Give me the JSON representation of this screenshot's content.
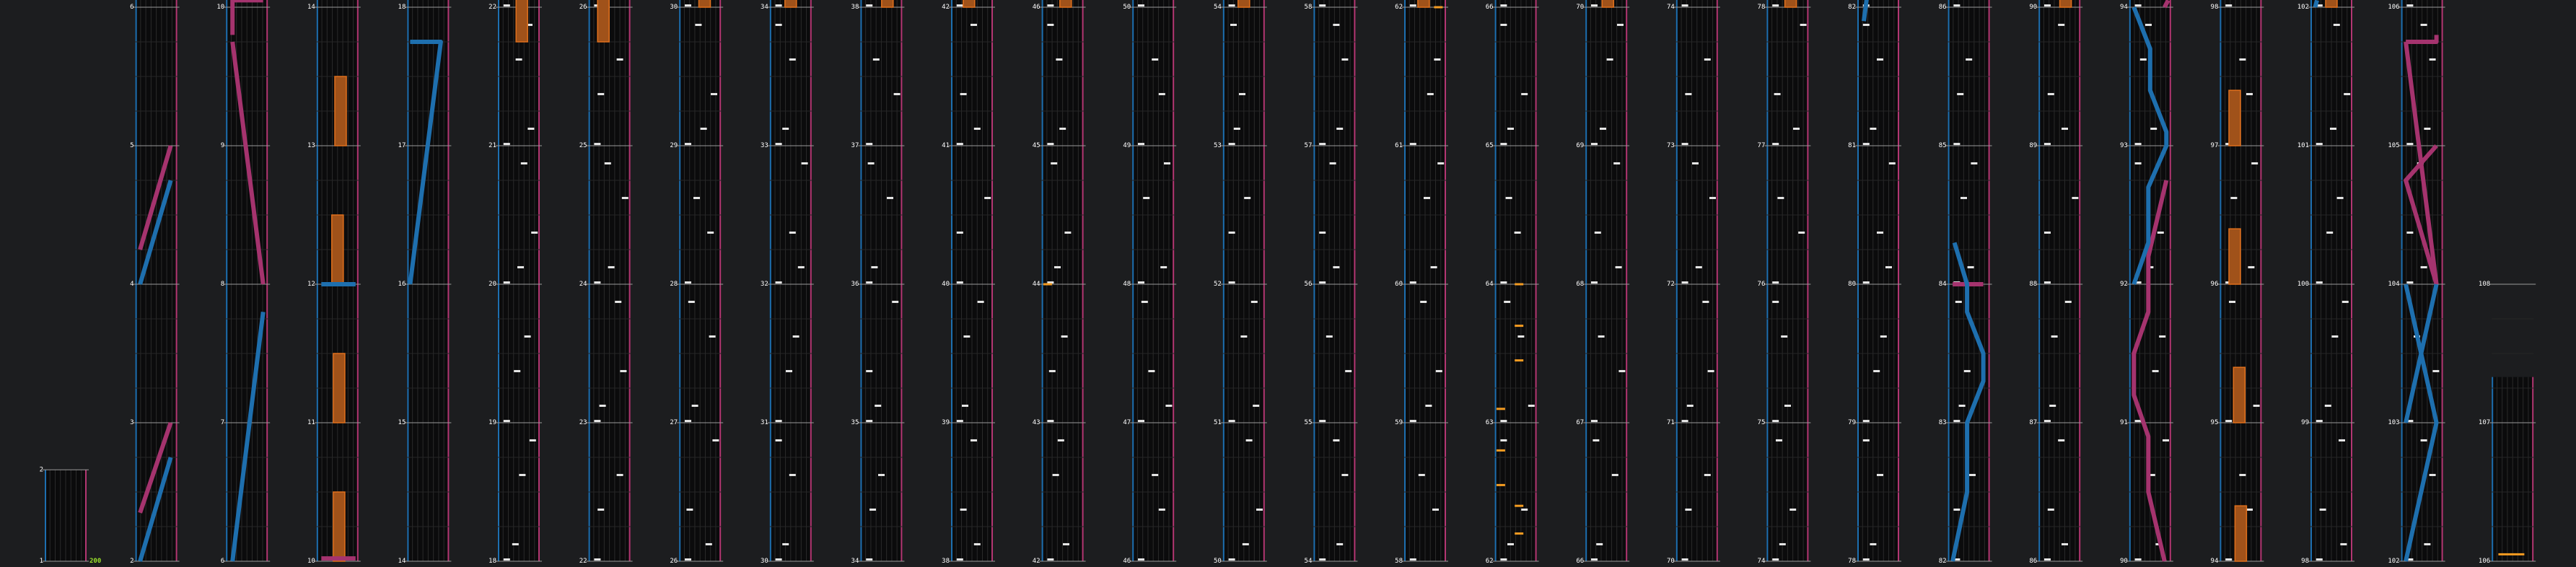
{
  "colors": {
    "background": "#1c1d1f",
    "lane_bg": "#0b0b0c",
    "measure_line": "#9a9a9a",
    "beat_line": "#2a2a2a",
    "left_border": "#1d6fb0",
    "right_border": "#b33672",
    "tap_note": "#e8e8e8",
    "hold_body": "#a0521a",
    "hold_edge": "#e0701c",
    "slide_blue": "#1e6fae",
    "slide_pink": "#a5336e",
    "marker": "#f39b21",
    "combo_text": "#9be22b",
    "label_text": "#ffffff"
  },
  "labels": {
    "column_start_measures": [
      "1",
      "2",
      "6",
      "10",
      "14",
      "18",
      "22",
      "26",
      "30",
      "34",
      "38",
      "42",
      "46",
      "50",
      "54",
      "58",
      "62",
      "66",
      "70",
      "74",
      "78",
      "82",
      "86",
      "90",
      "94",
      "98",
      "102",
      "106"
    ],
    "counter": "200"
  },
  "columns": [
    {
      "c": 0,
      "top_bar": 3,
      "notes": [],
      "slides": [
        {
          "color": "blue",
          "pts": [
            [
              0,
              0.06
            ],
            [
              1,
              0.06
            ]
          ]
        }
      ]
    },
    {
      "c": 1,
      "notes": [
        {
          "t": "tap",
          "b": 0.03
        }
      ],
      "slides": [
        {
          "color": "blue",
          "pts": [
            [
              0,
              0.0
            ],
            [
              0.85,
              0.75
            ],
            [
              0.85,
              1.0
            ],
            [
              0,
              1.0
            ]
          ]
        },
        {
          "color": "blue",
          "pts": [
            [
              0,
              1.0
            ],
            [
              0.85,
              1.75
            ]
          ]
        },
        {
          "color": "pink",
          "pts": [
            [
              0,
              2.0
            ],
            [
              0.85,
              2.75
            ]
          ]
        },
        {
          "color": "blue",
          "pts": [
            [
              0,
              3.0
            ],
            [
              0.85,
              3.75
            ]
          ]
        },
        {
          "color": "pink",
          "pts": [
            [
              0,
              4.0
            ],
            [
              0.85,
              4.75
            ]
          ]
        }
      ]
    },
    {
      "c": 2,
      "notes": [],
      "slides": [
        {
          "color": "blue",
          "pts": [
            [
              0.0,
              0.0
            ],
            [
              0.85,
              1.0
            ],
            [
              0.85,
              1.0
            ]
          ]
        },
        {
          "color": "blue",
          "pts": [
            [
              0.1,
              0.0
            ],
            [
              0.95,
              1.6
            ]
          ]
        },
        {
          "color": "pink",
          "pts": [
            [
              0.85,
              1.9
            ],
            [
              0.2,
              4.0
            ]
          ]
        },
        {
          "color": "pink",
          "pts": [
            [
              0.2,
              3.95
            ],
            [
              0.05,
              4.95
            ],
            [
              0.9,
              4.95
            ]
          ]
        }
      ]
    },
    {
      "c": 3,
      "notes": [],
      "slides": [
        {
          "color": "pink",
          "pts": [
            [
              0.0,
              0.0
            ],
            [
              1.0,
              0.0
            ]
          ]
        },
        {
          "color": "blue",
          "pts": [
            [
              0.0,
              2.0
            ],
            [
              1.0,
              2.0
            ]
          ]
        }
      ],
      "holds": [
        [
          0.95,
          4.0,
          1.3
        ]
      ]
    },
    {
      "c": 4,
      "notes": [],
      "holds": [
        [
          0.5,
          0.0,
          0.5
        ],
        [
          0.5,
          1.0,
          0.5
        ],
        [
          0.5,
          2.0,
          0.5
        ],
        [
          0.5,
          3.0,
          0.0
        ]
      ],
      "slides": [
        {
          "color": "blue",
          "pts": [
            [
              0.0,
              4.0
            ],
            [
              0.1,
              4.75
            ],
            [
              1.0,
              4.75
            ],
            [
              0.1,
              4.0
            ]
          ]
        }
      ]
    }
  ],
  "tap_patterns": {
    "22": [
      0.1,
      0.55,
      0.85,
      0.25,
      0.4,
      0.7,
      0.15,
      0.5,
      0.9,
      0.3,
      0.6,
      0.8,
      0.2,
      0.45,
      0.75,
      0.35
    ],
    "26": [
      0.3,
      0.7,
      0.5,
      0.1,
      0.9,
      0.4,
      0.6,
      0.2,
      0.75,
      0.5,
      0.25,
      0.85
    ]
  },
  "holds": [
    {
      "col": 5,
      "x": 0.6,
      "from": 4.9,
      "to": 4.45
    },
    {
      "col": 5,
      "x": 0.6,
      "from": 4.2,
      "to": 3.75
    },
    {
      "col": 6,
      "x": 0.3,
      "from": 4.9,
      "to": 4.45
    },
    {
      "col": 6,
      "x": 0.3,
      "from": 4.2,
      "to": 3.75
    },
    {
      "col": 7,
      "x": 0.65,
      "from": 4.85,
      "to": 4.0
    },
    {
      "col": 8,
      "x": 0.5,
      "from": 4.85,
      "to": 4.0
    },
    {
      "col": 9,
      "x": 0.7,
      "from": 4.85,
      "to": 4.0
    },
    {
      "col": 10,
      "x": 0.4,
      "from": 4.85,
      "to": 4.0
    },
    {
      "col": 11,
      "x": 0.6,
      "from": 4.5,
      "to": 4.0
    },
    {
      "col": 13,
      "x": 0.5,
      "from": 4.85,
      "to": 4.0
    },
    {
      "col": 15,
      "x": 0.45,
      "from": 4.85,
      "to": 4.0
    },
    {
      "col": 17,
      "x": 0.55,
      "from": 4.85,
      "to": 4.0
    },
    {
      "col": 19,
      "x": 0.6,
      "from": 4.85,
      "to": 4.0
    },
    {
      "col": 21,
      "x": 0.3,
      "from": 4.85,
      "to": 4.6
    },
    {
      "col": 22,
      "x": 0.3,
      "from": 4.85,
      "to": 4.6
    },
    {
      "col": 22,
      "x": 0.7,
      "from": 4.5,
      "to": 4.0
    },
    {
      "col": 24,
      "x": 0.3,
      "from": 3.4,
      "to": 3.0
    },
    {
      "col": 24,
      "x": 0.3,
      "from": 2.4,
      "to": 2.0
    },
    {
      "col": 24,
      "x": 0.5,
      "from": 0.4,
      "to": 0.0
    },
    {
      "col": 24,
      "x": 0.45,
      "from": 1.4,
      "to": 1.0
    },
    {
      "col": 25,
      "x": 0.5,
      "from": 4.85,
      "to": 4.0
    },
    {
      "col": 3,
      "x": 0.6,
      "from": 3.5,
      "to": 3.0
    },
    {
      "col": 3,
      "x": 0.5,
      "from": 2.5,
      "to": 2.0
    },
    {
      "col": 3,
      "x": 0.55,
      "from": 1.5,
      "to": 1.0
    },
    {
      "col": 3,
      "x": 0.55,
      "from": 0.5,
      "to": 0.0
    }
  ]
}
